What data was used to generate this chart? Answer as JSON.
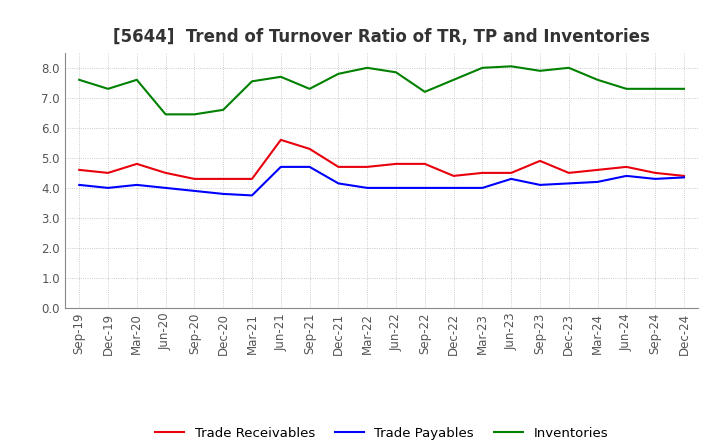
{
  "title": "[5644]  Trend of Turnover Ratio of TR, TP and Inventories",
  "x_labels": [
    "Sep-19",
    "Dec-19",
    "Mar-20",
    "Jun-20",
    "Sep-20",
    "Dec-20",
    "Mar-21",
    "Jun-21",
    "Sep-21",
    "Dec-21",
    "Mar-22",
    "Jun-22",
    "Sep-22",
    "Dec-22",
    "Mar-23",
    "Jun-23",
    "Sep-23",
    "Dec-23",
    "Mar-24",
    "Jun-24",
    "Sep-24",
    "Dec-24"
  ],
  "trade_receivables": [
    4.6,
    4.5,
    4.8,
    4.5,
    4.3,
    4.3,
    4.3,
    5.6,
    5.3,
    4.7,
    4.7,
    4.8,
    4.8,
    4.4,
    4.5,
    4.5,
    4.9,
    4.5,
    4.6,
    4.7,
    4.5,
    4.4
  ],
  "trade_payables": [
    4.1,
    4.0,
    4.1,
    4.0,
    3.9,
    3.8,
    3.75,
    4.7,
    4.7,
    4.15,
    4.0,
    4.0,
    4.0,
    4.0,
    4.0,
    4.3,
    4.1,
    4.15,
    4.2,
    4.4,
    4.3,
    4.35
  ],
  "inventories": [
    7.6,
    7.3,
    7.6,
    6.45,
    6.45,
    6.6,
    7.55,
    7.7,
    7.3,
    7.8,
    8.0,
    7.85,
    7.2,
    7.6,
    8.0,
    8.05,
    7.9,
    8.0,
    7.6,
    7.3,
    7.3,
    7.3
  ],
  "ylim": [
    0,
    8.5
  ],
  "yticks": [
    0.0,
    1.0,
    2.0,
    3.0,
    4.0,
    5.0,
    6.0,
    7.0,
    8.0
  ],
  "color_tr": "#e8000d",
  "color_tp": "#0000ff",
  "color_inv": "#008000",
  "legend_labels": [
    "Trade Receivables",
    "Trade Payables",
    "Inventories"
  ],
  "bg_color": "#ffffff",
  "grid_color": "#bbbbbb",
  "title_fontsize": 12,
  "title_color": "#333333",
  "axis_fontsize": 8.5,
  "legend_fontsize": 9.5
}
